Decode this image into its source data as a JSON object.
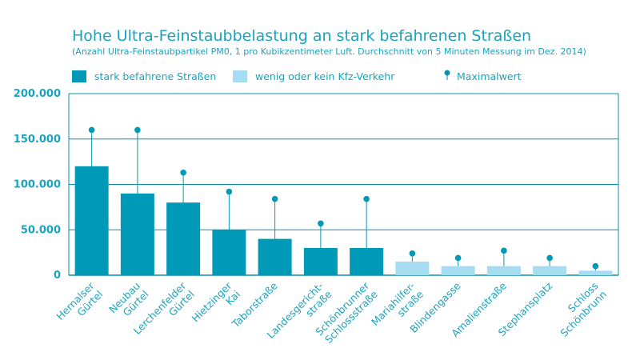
{
  "chart_data": {
    "type": "bar",
    "title": "Hohe Ultra-Feinstaubbelastung an stark befahrenen Straßen",
    "subtitle": "(Anzahl Ultra-Feinstaubpartikel PM0, 1 pro Kubikzentimeter Luft. Durchschnitt von 5 Minuten Messung im Dez. 2014)",
    "categories": [
      [
        "Hernalser",
        "Gürtel"
      ],
      [
        "Neubau",
        "Gürtel"
      ],
      [
        "Lerchenfelder",
        "Gürtel"
      ],
      [
        "Hietzinger",
        "Kai"
      ],
      [
        "Taborstraße"
      ],
      [
        "Landesgericht-",
        "straße"
      ],
      [
        "Schönbrunner",
        "Schlossstraße"
      ],
      [
        "Mariahilfer-",
        "straße"
      ],
      [
        "Blindengasse"
      ],
      [
        "Amalienstraße"
      ],
      [
        "Stephansplatz"
      ],
      [
        "Schloss",
        "Schönbrunn"
      ]
    ],
    "values": [
      120000,
      90000,
      80000,
      50000,
      40000,
      30000,
      30000,
      15000,
      10000,
      10000,
      10000,
      5000
    ],
    "max_values": [
      160000,
      160000,
      113000,
      92000,
      84000,
      57000,
      84000,
      24000,
      19000,
      27000,
      19000,
      10000
    ],
    "groups": [
      "stark",
      "stark",
      "stark",
      "stark",
      "stark",
      "stark",
      "stark",
      "wenig",
      "wenig",
      "wenig",
      "wenig",
      "wenig"
    ],
    "legend": [
      {
        "key": "stark",
        "label": "stark befahrene Straßen",
        "kind": "box"
      },
      {
        "key": "wenig",
        "label": "wenig oder kein Kfz-Verkehr",
        "kind": "box"
      },
      {
        "key": "max",
        "label": "Maximalwert",
        "kind": "pin"
      }
    ],
    "ylim": [
      0,
      200000
    ],
    "yticks": [
      0,
      50000,
      100000,
      150000,
      200000
    ],
    "ytick_labels": [
      "0",
      "50.000",
      "100.000",
      "150.000",
      "200.000"
    ],
    "legend_position": "top-left",
    "grid": true,
    "colors": {
      "stark": "#0099b8",
      "wenig": "#a6dcf2",
      "accent": "#1aa3bf",
      "axis": "#0a8fae"
    }
  }
}
